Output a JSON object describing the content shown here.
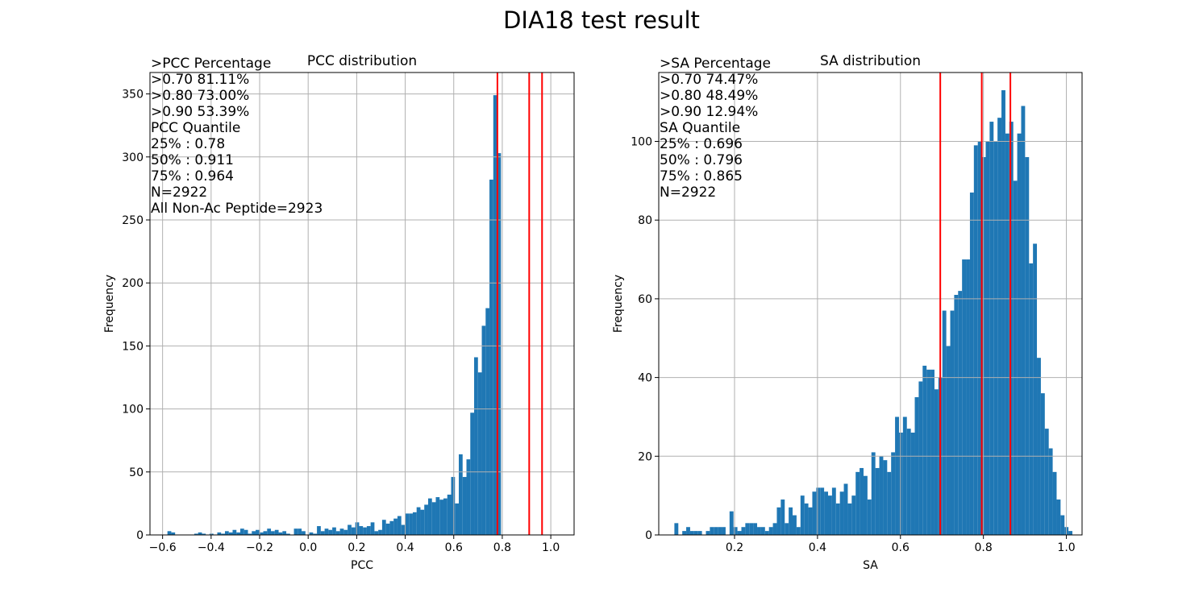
{
  "figure": {
    "title": "DIA18 test result",
    "bar_color": "#1f77b4",
    "line_color": "#ff0000"
  },
  "chart_data": [
    {
      "type": "bar",
      "title": "PCC distribution",
      "xlabel": "PCC",
      "ylabel": "Frequency",
      "xlim": [
        -0.652,
        1.096
      ],
      "ylim": [
        0,
        367
      ],
      "xticks": [
        -0.6,
        -0.4,
        -0.2,
        0.0,
        0.2,
        0.4,
        0.6,
        0.8,
        1.0
      ],
      "xtick_labels": [
        "−0.6",
        "−0.4",
        "−0.2",
        "0.0",
        "0.2",
        "0.4",
        "0.6",
        "0.8",
        "1.0"
      ],
      "yticks": [
        0,
        50,
        100,
        150,
        200,
        250,
        300,
        350
      ],
      "ytick_labels": [
        "0",
        "50",
        "100",
        "150",
        "200",
        "250",
        "300",
        "350"
      ],
      "grid": true,
      "bin_start": -0.58,
      "bin_width": 0.0158,
      "values": [
        3,
        2,
        0,
        0,
        0,
        0,
        0,
        1,
        2,
        1,
        0,
        1,
        0,
        2,
        1,
        3,
        2,
        4,
        2,
        5,
        4,
        1,
        3,
        4,
        2,
        3,
        5,
        3,
        4,
        2,
        3,
        1,
        0,
        5,
        5,
        3,
        0,
        2,
        1,
        7,
        3,
        5,
        4,
        6,
        3,
        5,
        4,
        8,
        6,
        10,
        7,
        6,
        7,
        10,
        3,
        4,
        12,
        9,
        11,
        13,
        15,
        8,
        17,
        17,
        18,
        22,
        20,
        24,
        29,
        26,
        30,
        28,
        29,
        32,
        46,
        25,
        64,
        46,
        60,
        97,
        141,
        129,
        166,
        180,
        282,
        349,
        303
      ],
      "vlines": [
        0.78,
        0.911,
        0.964
      ],
      "annotation": [
        ">PCC Percentage",
        ">0.70 81.11%",
        ">0.80 73.00%",
        ">0.90 53.39%",
        "PCC Quantile",
        "25% : 0.78",
        "50% : 0.911",
        "75% : 0.964",
        "N=2922",
        "All Non-Ac Peptide=2923"
      ]
    },
    {
      "type": "bar",
      "title": "SA distribution",
      "xlabel": "SA",
      "ylabel": "Frequency",
      "xlim": [
        0.0173,
        1.0378
      ],
      "ylim": [
        0,
        117.5
      ],
      "xticks": [
        0.2,
        0.4,
        0.6,
        0.8,
        1.0
      ],
      "xtick_labels": [
        "0.2",
        "0.4",
        "0.6",
        "0.8",
        "1.0"
      ],
      "yticks": [
        0,
        20,
        40,
        60,
        80,
        100
      ],
      "ytick_labels": [
        "0",
        "20",
        "40",
        "60",
        "80",
        "100"
      ],
      "grid": true,
      "bin_start": 0.055,
      "bin_width": 0.0095,
      "values": [
        3,
        0,
        1,
        2,
        1,
        1,
        1,
        0,
        1,
        2,
        2,
        2,
        2,
        0,
        6,
        2,
        1,
        2,
        3,
        3,
        3,
        2,
        2,
        1,
        2,
        3,
        7,
        9,
        3,
        7,
        5,
        2,
        10,
        8,
        7,
        11,
        12,
        12,
        11,
        10,
        12,
        8,
        11,
        13,
        8,
        10,
        16,
        17,
        15,
        9,
        21,
        17,
        20,
        19,
        16,
        21,
        30,
        26,
        30,
        27,
        26,
        35,
        39,
        43,
        42,
        42,
        37,
        40,
        57,
        48,
        57,
        61,
        62,
        70,
        70,
        87,
        99,
        100,
        96,
        100,
        105,
        100,
        106,
        113,
        102,
        105,
        90,
        102,
        109,
        96,
        69,
        74,
        45,
        36,
        27,
        22,
        16,
        9,
        5,
        2,
        1
      ],
      "vlines": [
        0.696,
        0.796,
        0.865
      ],
      "annotation": [
        ">SA Percentage",
        ">0.70 74.47%",
        ">0.80 48.49%",
        ">0.90 12.94%",
        "SA Quantile",
        "25% : 0.696",
        "50% : 0.796",
        "75% : 0.865",
        "N=2922"
      ]
    }
  ]
}
